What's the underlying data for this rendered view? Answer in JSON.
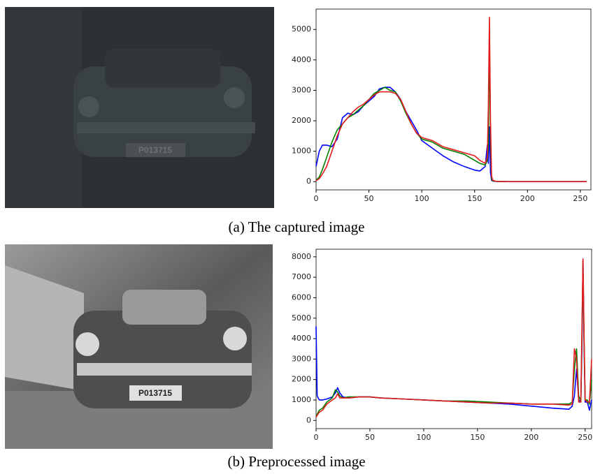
{
  "chart_data": [
    {
      "type": "line",
      "x": [
        0,
        3,
        6,
        10,
        15,
        20,
        25,
        30,
        35,
        40,
        45,
        50,
        55,
        60,
        65,
        70,
        75,
        80,
        85,
        90,
        95,
        100,
        110,
        120,
        130,
        140,
        150,
        155,
        160,
        162,
        163,
        164,
        165,
        166,
        167,
        170,
        180,
        200,
        220,
        240,
        256
      ],
      "series": [
        {
          "color": "#0000ff",
          "values": [
            500,
            1000,
            1200,
            1200,
            1150,
            1400,
            2100,
            2250,
            2200,
            2300,
            2500,
            2650,
            2800,
            3050,
            3100,
            3100,
            2950,
            2700,
            2300,
            2000,
            1700,
            1350,
            1100,
            850,
            650,
            500,
            380,
            350,
            500,
            1200,
            600,
            1800,
            300,
            50,
            20,
            10,
            0,
            0,
            0,
            0,
            0
          ]
        },
        {
          "color": "#008000",
          "values": [
            50,
            150,
            400,
            800,
            1300,
            1700,
            1900,
            2100,
            2200,
            2350,
            2500,
            2700,
            2900,
            3000,
            3100,
            3000,
            2950,
            2650,
            2250,
            1900,
            1600,
            1400,
            1300,
            1100,
            1000,
            900,
            700,
            600,
            550,
            700,
            1200,
            5000,
            1500,
            100,
            30,
            10,
            0,
            0,
            0,
            0,
            0
          ]
        },
        {
          "color": "#e41a1c",
          "values": [
            30,
            100,
            250,
            500,
            1000,
            1500,
            1900,
            2100,
            2300,
            2450,
            2550,
            2700,
            2850,
            2950,
            2950,
            2950,
            2900,
            2700,
            2300,
            1900,
            1600,
            1450,
            1350,
            1150,
            1050,
            950,
            850,
            700,
            600,
            800,
            2500,
            5400,
            2000,
            200,
            50,
            10,
            0,
            0,
            0,
            0,
            0
          ]
        }
      ],
      "xlim": [
        0,
        260
      ],
      "xticks": [
        0,
        50,
        100,
        150,
        200,
        250
      ],
      "ylim": [
        -270,
        5670
      ],
      "yticks": [
        0,
        1000,
        2000,
        3000,
        4000,
        5000
      ]
    },
    {
      "type": "line",
      "x": [
        0,
        1,
        3,
        6,
        10,
        15,
        18,
        20,
        22,
        25,
        30,
        40,
        50,
        60,
        80,
        100,
        120,
        140,
        160,
        180,
        200,
        220,
        235,
        238,
        240,
        242,
        244,
        246,
        247,
        248,
        249,
        250,
        252,
        254,
        256
      ],
      "series": [
        {
          "color": "#0000ff",
          "values": [
            4600,
            1200,
            1000,
            1000,
            1050,
            1150,
            1350,
            1600,
            1350,
            1150,
            1100,
            1150,
            1150,
            1100,
            1050,
            1000,
            950,
            900,
            850,
            800,
            700,
            600,
            550,
            700,
            1200,
            2500,
            1000,
            900,
            3500,
            7800,
            3500,
            900,
            900,
            500,
            1000
          ]
        },
        {
          "color": "#008000",
          "values": [
            200,
            300,
            500,
            600,
            900,
            1100,
            1500,
            1400,
            1200,
            1100,
            1150,
            1150,
            1150,
            1100,
            1050,
            1000,
            950,
            950,
            900,
            850,
            800,
            800,
            800,
            900,
            2500,
            3500,
            1200,
            950,
            4000,
            7800,
            3800,
            1000,
            1000,
            800,
            2000
          ]
        },
        {
          "color": "#e41a1c",
          "values": [
            150,
            250,
            400,
            500,
            800,
            1000,
            1100,
            1300,
            1100,
            1100,
            1100,
            1150,
            1150,
            1100,
            1050,
            1000,
            950,
            900,
            850,
            850,
            800,
            800,
            750,
            800,
            3500,
            3000,
            900,
            900,
            4500,
            7900,
            4200,
            1000,
            900,
            900,
            3000
          ]
        }
      ],
      "xlim": [
        0,
        256
      ],
      "xticks": [
        0,
        50,
        100,
        150,
        200,
        250
      ],
      "ylim": [
        -400,
        8370
      ],
      "yticks": [
        0,
        1000,
        2000,
        3000,
        4000,
        5000,
        6000,
        7000,
        8000
      ]
    }
  ],
  "figures": [
    {
      "caption": "(a) The captured image",
      "plate_text": "P013715"
    },
    {
      "caption": "(b) Preprocessed image",
      "plate_text": "P013715"
    }
  ]
}
